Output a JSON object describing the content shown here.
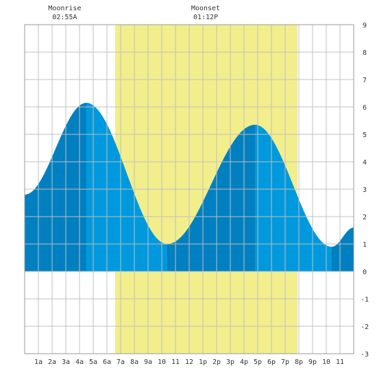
{
  "chart_data": {
    "type": "area",
    "title": "",
    "xlabel": "",
    "ylabel": "",
    "x_range_hours": [
      0,
      24
    ],
    "ylim": [
      -3,
      9
    ],
    "yticks": [
      9,
      8,
      7,
      6,
      5,
      4,
      3,
      2,
      1,
      0,
      -1,
      -2,
      -3
    ],
    "xtick_labels": [
      "1a",
      "2a",
      "3a",
      "4a",
      "5a",
      "6a",
      "7a",
      "8a",
      "9a",
      "10",
      "11",
      "12",
      "1p",
      "2p",
      "3p",
      "4p",
      "5p",
      "6p",
      "7p",
      "8p",
      "9p",
      "10",
      "11"
    ],
    "grid": true,
    "daylight": {
      "start_hour": 6.6,
      "end_hour": 19.9
    },
    "tide_extremes": [
      {
        "hour": 0.0,
        "height": 2.8
      },
      {
        "hour": 4.5,
        "height": 6.15
      },
      {
        "hour": 10.4,
        "height": 1.0
      },
      {
        "hour": 16.8,
        "height": 5.35
      },
      {
        "hour": 22.4,
        "height": 0.9
      },
      {
        "hour": 24.0,
        "height": 1.6
      }
    ],
    "shade_breaks_hours": [
      4.5,
      10.4,
      16.8,
      22.4
    ],
    "colors": {
      "daylight": "#f2ee8c",
      "tide_light": "#0099dd",
      "tide_dark": "#0080c0",
      "grid": "#c0c0c0"
    },
    "annotations": {
      "moonrise": {
        "label": "Moonrise",
        "time": "02:55A",
        "hour": 2.92
      },
      "moonset": {
        "label": "Moonset",
        "time": "01:12P",
        "hour": 13.2
      }
    }
  }
}
